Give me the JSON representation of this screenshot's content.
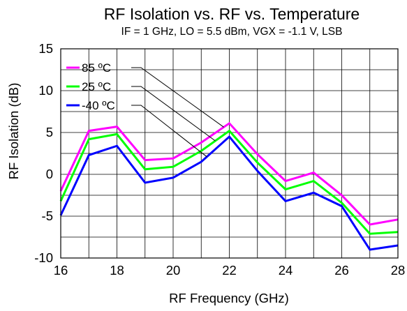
{
  "chart_data": {
    "type": "line",
    "title": "RF Isolation vs. RF vs. Temperature",
    "subtitle": "IF = 1 GHz, LO = 5.5 dBm, VGX = -1.1 V, LSB",
    "xlabel": "RF Frequency (GHz)",
    "ylabel": "RF Isolation (dB)",
    "xlim": [
      16,
      28
    ],
    "ylim": [
      -10,
      15
    ],
    "xticks": [
      16,
      18,
      20,
      22,
      24,
      26,
      28
    ],
    "yticks": [
      -10,
      -5,
      0,
      5,
      10,
      15
    ],
    "grid": true,
    "legend_position": "top-left",
    "x": [
      16,
      17,
      18,
      19,
      20,
      21,
      22,
      23,
      24,
      25,
      26,
      27,
      28
    ],
    "series": [
      {
        "name": "85 ºC",
        "color": "#ff00ff",
        "values": [
          -2.0,
          5.2,
          5.7,
          1.7,
          1.9,
          3.8,
          6.1,
          2.4,
          -0.8,
          0.2,
          -2.5,
          -6.0,
          -5.4
        ]
      },
      {
        "name": "25 ºC",
        "color": "#00ff00",
        "values": [
          -3.2,
          4.2,
          4.8,
          0.6,
          0.9,
          2.8,
          5.2,
          1.4,
          -1.8,
          -0.8,
          -3.4,
          -7.1,
          -6.9
        ]
      },
      {
        "name": "-40 ºC",
        "color": "#0000ff",
        "values": [
          -4.9,
          2.3,
          3.4,
          -1.0,
          -0.4,
          1.5,
          4.5,
          0.4,
          -3.2,
          -2.2,
          -3.8,
          -9.0,
          -8.5
        ]
      }
    ]
  }
}
